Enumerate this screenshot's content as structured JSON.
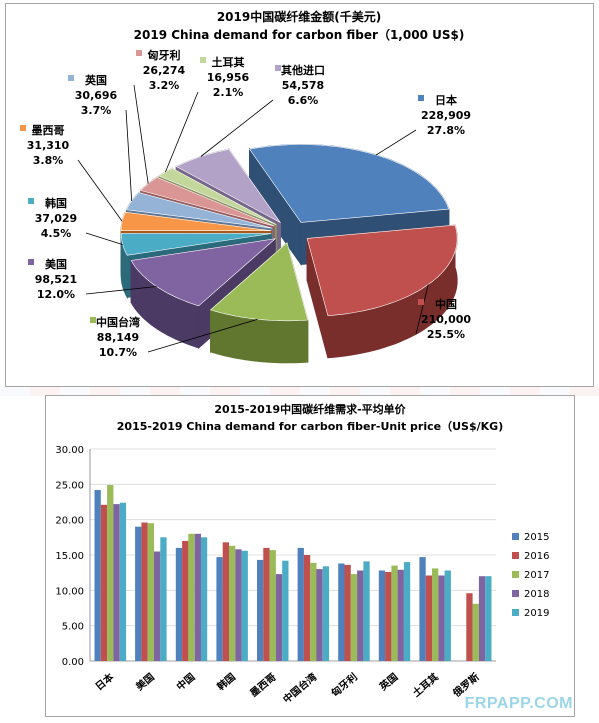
{
  "pie_chart": {
    "title_zh": "2019中国碳纤维金额(千美元)",
    "title_en": "2019 China demand for carbon fiber（1,000 US$)",
    "slices": [
      {
        "name": "日本",
        "value": "228,909",
        "pct": "27.8%",
        "v": 228909,
        "color": "#4f81bd",
        "side": "#2f4f75"
      },
      {
        "name": "中国",
        "value": "210,000",
        "pct": "25.5%",
        "v": 210000,
        "color": "#c0504d",
        "side": "#7a2e2c"
      },
      {
        "name": "中国台湾",
        "value": "88,149",
        "pct": "10.7%",
        "v": 88149,
        "color": "#9bbb59",
        "side": "#61762f"
      },
      {
        "name": "美国",
        "value": "98,521",
        "pct": "12.0%",
        "v": 98521,
        "color": "#8064a2",
        "side": "#4b3a63"
      },
      {
        "name": "韩国",
        "value": "37,029",
        "pct": "4.5%",
        "v": 37029,
        "color": "#4bacc6",
        "side": "#2a6a7b"
      },
      {
        "name": "墨西哥",
        "value": "31,310",
        "pct": "3.8%",
        "v": 31310,
        "color": "#f79646",
        "side": "#a85a1c"
      },
      {
        "name": "英国",
        "value": "30,696",
        "pct": "3.7%",
        "v": 30696,
        "color": "#95b3d7",
        "side": "#5a7aa0"
      },
      {
        "name": "匈牙利",
        "value": "26,274",
        "pct": "3.2%",
        "v": 26274,
        "color": "#d99694",
        "side": "#9a5a58"
      },
      {
        "name": "土耳其",
        "value": "16,956",
        "pct": "2.1%",
        "v": 16956,
        "color": "#c3d69b",
        "side": "#86985e"
      },
      {
        "name": "其他进口",
        "value": "54,578",
        "pct": "6.6%",
        "v": 54578,
        "color": "#b3a2c7",
        "side": "#76668b"
      }
    ]
  },
  "chart_data": {
    "type": "bar",
    "title": "2015-2019中国碳纤维需求-平均单价",
    "subtitle": "2015-2019 China demand for carbon fiber-Unit price（US$/KG)",
    "categories": [
      "日本",
      "美国",
      "中国",
      "韩国",
      "墨西哥",
      "中国台湾",
      "匈牙利",
      "英国",
      "土耳其",
      "俄罗斯"
    ],
    "ylim": [
      0,
      30
    ],
    "yticks": [
      "0.00",
      "5.00",
      "10.00",
      "15.00",
      "20.00",
      "25.00",
      "30.00"
    ],
    "grid": true,
    "legend_position": "right",
    "series": [
      {
        "name": "2015",
        "color": "#4f81bd",
        "values": [
          24.2,
          19.0,
          16.0,
          14.7,
          14.3,
          16.0,
          13.8,
          12.8,
          14.7,
          0
        ]
      },
      {
        "name": "2016",
        "color": "#c0504d",
        "values": [
          22.1,
          19.6,
          17.0,
          16.8,
          16.0,
          15.0,
          13.6,
          12.6,
          12.1,
          9.6
        ]
      },
      {
        "name": "2017",
        "color": "#9bbb59",
        "values": [
          24.9,
          19.5,
          18.0,
          16.3,
          15.7,
          13.9,
          12.3,
          13.5,
          13.1,
          8.1
        ]
      },
      {
        "name": "2018",
        "color": "#8064a2",
        "values": [
          22.2,
          15.5,
          18.0,
          15.8,
          12.3,
          13.0,
          12.8,
          12.9,
          12.1,
          12.0
        ]
      },
      {
        "name": "2019",
        "color": "#4bacc6",
        "values": [
          22.4,
          17.5,
          17.5,
          15.6,
          14.2,
          13.4,
          14.1,
          14.0,
          12.8,
          12.0
        ]
      }
    ]
  },
  "watermark": "FRPAPP.COM"
}
